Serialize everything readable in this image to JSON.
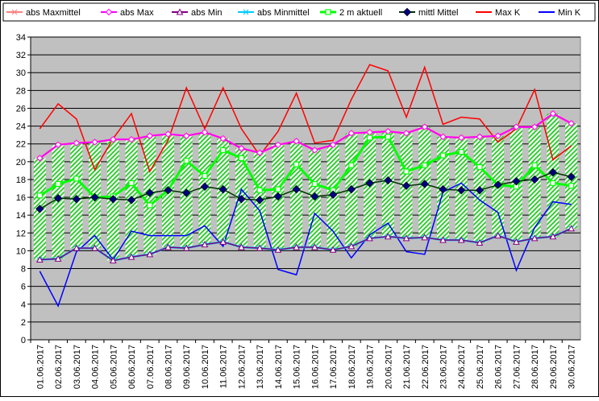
{
  "chart_data": {
    "type": "line",
    "title": "",
    "xlabel": "",
    "ylabel": "",
    "ylim": [
      0,
      34
    ],
    "ytick_step": 2,
    "grid": true,
    "legend_position": "top",
    "background_color": "#c0c0c0",
    "categories": [
      "01.06.2017",
      "02.06.2017",
      "03.06.2017",
      "04.06.2017",
      "05.06.2017",
      "06.06.2017",
      "07.06.2017",
      "08.06.2017",
      "09.06.2017",
      "10.06.2017",
      "11.06.2017",
      "12.06.2017",
      "13.06.2017",
      "14.06.2017",
      "15.06.2017",
      "16.06.2017",
      "17.06.2017",
      "18.06.2017",
      "19.06.2017",
      "20.06.2017",
      "21.06.2017",
      "22.06.2017",
      "23.06.2017",
      "24.06.2017",
      "25.06.2017",
      "26.06.2017",
      "27.06.2017",
      "28.06.2017",
      "29.06.2017",
      "30.06.2017"
    ],
    "series": [
      {
        "name": "abs Maxmittel",
        "color": "#ff8080",
        "marker": "x",
        "values": [
          20.4,
          21.9,
          22.1,
          22.2,
          22.5,
          22.5,
          22.9,
          23.1,
          22.9,
          23.3,
          22.6,
          21.5,
          21.0,
          21.9,
          22.3,
          21.3,
          21.9,
          23.2,
          23.3,
          23.4,
          23.2,
          23.9,
          22.8,
          22.7,
          22.8,
          22.9,
          23.9,
          23.9,
          25.4,
          24.3
        ]
      },
      {
        "name": "abs Max",
        "color": "#ff00ff",
        "marker": "diamond-open",
        "values": [
          20.4,
          21.9,
          22.1,
          22.2,
          22.5,
          22.5,
          22.9,
          23.1,
          22.9,
          23.3,
          22.6,
          21.5,
          21.0,
          21.9,
          22.3,
          21.3,
          21.9,
          23.2,
          23.3,
          23.4,
          23.2,
          23.9,
          22.8,
          22.7,
          22.8,
          22.9,
          23.9,
          23.9,
          25.4,
          24.3
        ]
      },
      {
        "name": "abs Min",
        "color": "#800080",
        "marker": "triangle-open",
        "values": [
          9.0,
          9.1,
          10.3,
          10.3,
          8.9,
          9.3,
          9.6,
          10.4,
          10.3,
          10.7,
          11.0,
          10.4,
          10.3,
          10.1,
          10.4,
          10.4,
          10.1,
          10.5,
          11.4,
          11.6,
          11.4,
          11.5,
          11.2,
          11.2,
          10.9,
          11.7,
          11.0,
          11.4,
          11.6,
          12.5
        ]
      },
      {
        "name": "abs Minmittel",
        "color": "#00ccff",
        "marker": "x",
        "values": [
          9.0,
          9.1,
          10.3,
          10.3,
          8.9,
          9.3,
          9.6,
          10.4,
          10.3,
          10.7,
          11.0,
          10.4,
          10.3,
          10.1,
          10.4,
          10.4,
          10.1,
          10.5,
          11.4,
          11.6,
          11.4,
          11.5,
          11.2,
          11.2,
          10.9,
          11.7,
          11.0,
          11.4,
          11.6,
          12.5
        ]
      },
      {
        "name": "2 m aktuell",
        "color": "#00ff00",
        "marker": "square-open",
        "values": [
          16.2,
          17.5,
          18.1,
          16.0,
          16.1,
          17.6,
          15.1,
          16.8,
          20.1,
          18.4,
          21.3,
          20.4,
          16.8,
          16.9,
          19.7,
          17.5,
          16.8,
          19.6,
          22.7,
          22.8,
          18.9,
          19.6,
          20.7,
          21.1,
          19.4,
          17.4,
          17.2,
          19.6,
          17.6,
          17.3
        ]
      },
      {
        "name": "mittl Mittel",
        "color": "#003300",
        "marker": "diamond",
        "values": [
          14.7,
          15.9,
          15.8,
          16.0,
          15.8,
          15.7,
          16.5,
          16.8,
          16.5,
          17.2,
          16.9,
          15.8,
          15.7,
          16.1,
          16.9,
          16.1,
          16.3,
          16.9,
          17.6,
          17.9,
          17.3,
          17.5,
          16.9,
          16.8,
          16.8,
          17.4,
          17.8,
          18.0,
          18.8,
          18.3
        ]
      },
      {
        "name": "Max K",
        "color": "#ff0000",
        "marker": "none",
        "values": [
          23.7,
          26.5,
          24.8,
          19.1,
          22.6,
          25.4,
          18.9,
          22.4,
          28.3,
          23.7,
          28.3,
          23.7,
          20.7,
          23.4,
          27.7,
          22.1,
          22.4,
          27.0,
          30.9,
          30.2,
          25.0,
          30.6,
          24.2,
          25.0,
          24.8,
          22.2,
          23.7,
          28.1,
          20.2,
          21.8
        ]
      },
      {
        "name": "Min K",
        "color": "#0000ff",
        "marker": "none",
        "values": [
          7.7,
          3.8,
          9.9,
          11.7,
          9.0,
          12.2,
          11.7,
          11.7,
          11.7,
          12.8,
          10.5,
          16.9,
          14.5,
          7.9,
          7.3,
          14.2,
          12.2,
          9.2,
          11.8,
          13.1,
          9.9,
          9.6,
          16.6,
          17.6,
          15.7,
          14.3,
          7.8,
          12.6,
          15.5,
          15.2
        ]
      }
    ],
    "bands": {
      "from_series": "abs Min",
      "to_series": "abs Max",
      "fill": "hatched-green"
    }
  }
}
